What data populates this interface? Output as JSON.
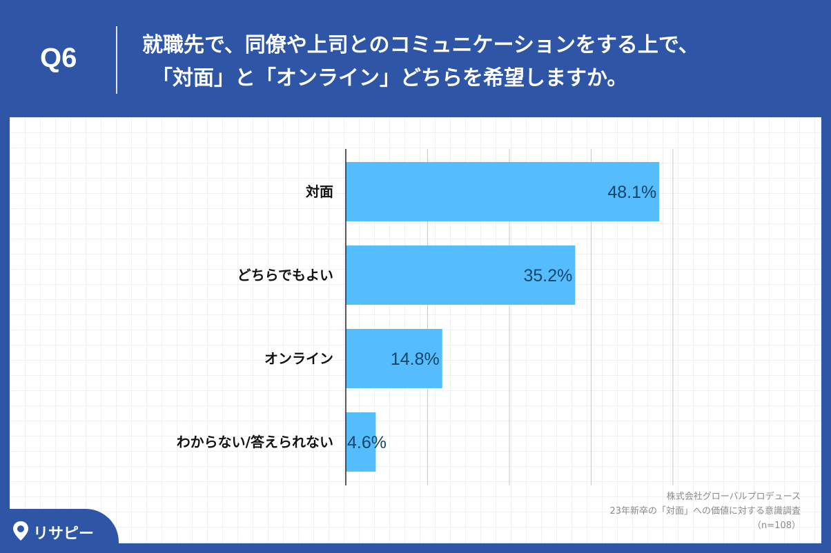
{
  "header": {
    "question_number": "Q6",
    "title_line1": "就職先で、同僚や上司とのコミュニケーションをする上で、",
    "title_line2": "「対面」と「オンライン」どちらを希望しますか。"
  },
  "chart_data": {
    "type": "bar",
    "orientation": "horizontal",
    "categories": [
      "対面",
      "どちらでもよい",
      "オンライン",
      "わからない/答えられない"
    ],
    "values": [
      48.1,
      35.2,
      14.8,
      4.6
    ],
    "value_labels": [
      "48.1%",
      "35.2%",
      "14.8%",
      "4.6%"
    ],
    "xlim": [
      0,
      50
    ],
    "grid": true,
    "bar_color": "#55bdfc",
    "label_color": "#12456b"
  },
  "credit": {
    "line1": "株式会社グローバルプロデュース",
    "line2": "23年新卒の「対面」への価値に対する意識調査",
    "line3": "（n=108）"
  },
  "logo": {
    "text": "リサピー",
    "icon": "location-pin-icon"
  },
  "colors": {
    "frame": "#2f55a6",
    "panel": "#ffffff"
  }
}
